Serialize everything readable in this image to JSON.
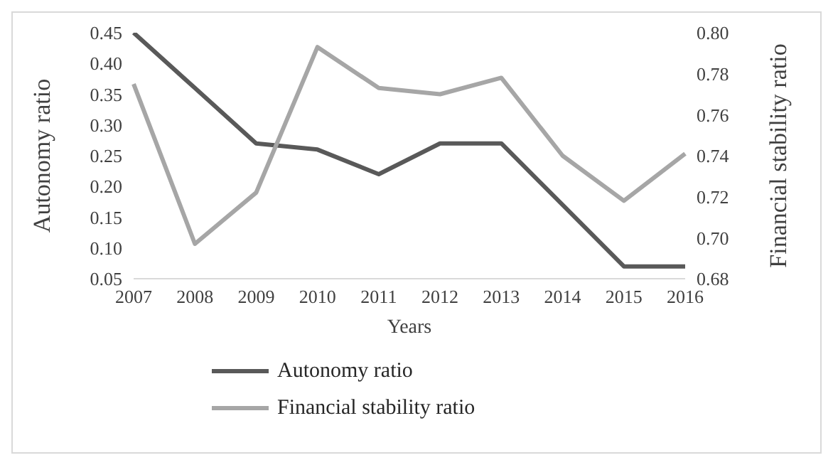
{
  "chart_data": {
    "type": "line",
    "xlabel": "Years",
    "ylabel": "Autonomy  ratio",
    "y2label": "Financial  stability  ratio",
    "categories": [
      "2007",
      "2008",
      "2009",
      "2010",
      "2011",
      "2012",
      "2013",
      "2014",
      "2015",
      "2016"
    ],
    "series": [
      {
        "name": "Autonomy ratio",
        "color": "#595959",
        "values": [
          0.45,
          0.36,
          0.27,
          0.26,
          0.22,
          0.27,
          0.27,
          0.17,
          0.07,
          0.07
        ]
      },
      {
        "name": "Financial stability ratio",
        "color": "#a6a6a6",
        "axis": "y2",
        "values": [
          0.775,
          0.697,
          0.722,
          0.793,
          0.773,
          0.77,
          0.778,
          0.74,
          0.718,
          0.741
        ]
      }
    ],
    "ylim": [
      0.05,
      0.45
    ],
    "yticks": [
      0.05,
      {
        "value": 0.1,
        "label": "0.10"
      },
      0.15,
      {
        "value": 0.2,
        "label": "0.20"
      },
      0.25,
      {
        "value": 0.3,
        "label": "0.30"
      },
      0.35,
      {
        "value": 0.4,
        "label": "0.40"
      },
      0.45
    ],
    "y2lim": [
      0.68,
      0.8
    ],
    "y2ticks": [
      0.68,
      {
        "value": 0.7,
        "label": "0.70"
      },
      0.72,
      0.74,
      0.76,
      0.78,
      {
        "value": 0.8,
        "label": "0.80"
      }
    ],
    "grid": false,
    "legend": "bottom",
    "marker": "none",
    "line_style": "solid"
  }
}
